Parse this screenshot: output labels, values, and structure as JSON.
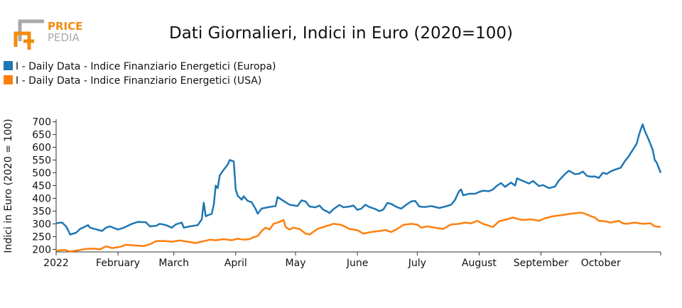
{
  "logo": {
    "line1": "PRICE",
    "line2": "PEDIA",
    "accent": "#f28c0f",
    "muted": "#a9a9a9"
  },
  "chart_data": {
    "type": "line",
    "title": "Dati Giornalieri, Indici in Euro (2020=100)",
    "xlabel": "",
    "ylabel": "Indici in Euro (2020 = 100)",
    "ylim": [
      190,
      710
    ],
    "yticks": [
      200,
      250,
      300,
      350,
      400,
      450,
      500,
      550,
      600,
      650,
      700
    ],
    "xlim": [
      "2022-01-01",
      "2022-10-31"
    ],
    "xticks": [
      {
        "date": "2022-01-01",
        "label": "2022"
      },
      {
        "date": "2022-02-01",
        "label": "February"
      },
      {
        "date": "2022-03-01",
        "label": "March"
      },
      {
        "date": "2022-04-01",
        "label": "April"
      },
      {
        "date": "2022-05-01",
        "label": "May"
      },
      {
        "date": "2022-06-01",
        "label": "June"
      },
      {
        "date": "2022-07-01",
        "label": "July"
      },
      {
        "date": "2022-08-01",
        "label": "August"
      },
      {
        "date": "2022-09-01",
        "label": "September"
      },
      {
        "date": "2022-10-01",
        "label": "October"
      }
    ],
    "grid": false,
    "legend_position": "top-left",
    "series": [
      {
        "name": "I - Daily Data - Indice Finanziario Energetici (Europa)",
        "color": "#1f77b4",
        "points": [
          [
            "2022-01-01",
            303
          ],
          [
            "2022-01-04",
            305
          ],
          [
            "2022-01-06",
            290
          ],
          [
            "2022-01-07",
            275
          ],
          [
            "2022-01-08",
            258
          ],
          [
            "2022-01-11",
            265
          ],
          [
            "2022-01-13",
            280
          ],
          [
            "2022-01-17",
            295
          ],
          [
            "2022-01-18",
            285
          ],
          [
            "2022-01-24",
            272
          ],
          [
            "2022-01-26",
            285
          ],
          [
            "2022-01-28",
            290
          ],
          [
            "2022-02-01",
            278
          ],
          [
            "2022-02-04",
            285
          ],
          [
            "2022-02-08",
            300
          ],
          [
            "2022-02-11",
            308
          ],
          [
            "2022-02-15",
            306
          ],
          [
            "2022-02-17",
            290
          ],
          [
            "2022-02-20",
            292
          ],
          [
            "2022-02-22",
            300
          ],
          [
            "2022-02-25",
            295
          ],
          [
            "2022-02-28",
            285
          ],
          [
            "2022-03-02",
            298
          ],
          [
            "2022-03-05",
            305
          ],
          [
            "2022-03-06",
            285
          ],
          [
            "2022-03-09",
            290
          ],
          [
            "2022-03-13",
            295
          ],
          [
            "2022-03-15",
            318
          ],
          [
            "2022-03-16",
            383
          ],
          [
            "2022-03-17",
            330
          ],
          [
            "2022-03-20",
            340
          ],
          [
            "2022-03-21",
            375
          ],
          [
            "2022-03-22",
            450
          ],
          [
            "2022-03-23",
            440
          ],
          [
            "2022-03-24",
            490
          ],
          [
            "2022-03-26",
            512
          ],
          [
            "2022-03-28",
            532
          ],
          [
            "2022-03-29",
            550
          ],
          [
            "2022-03-31",
            545
          ],
          [
            "2022-04-01",
            435
          ],
          [
            "2022-04-02",
            410
          ],
          [
            "2022-04-04",
            395
          ],
          [
            "2022-04-05",
            408
          ],
          [
            "2022-04-07",
            390
          ],
          [
            "2022-04-09",
            385
          ],
          [
            "2022-04-11",
            358
          ],
          [
            "2022-04-12",
            340
          ],
          [
            "2022-04-14",
            360
          ],
          [
            "2022-04-17",
            365
          ],
          [
            "2022-04-21",
            370
          ],
          [
            "2022-04-22",
            405
          ],
          [
            "2022-04-24",
            395
          ],
          [
            "2022-04-26",
            385
          ],
          [
            "2022-04-28",
            375
          ],
          [
            "2022-05-02",
            370
          ],
          [
            "2022-05-04",
            392
          ],
          [
            "2022-05-06",
            388
          ],
          [
            "2022-05-08",
            368
          ],
          [
            "2022-05-11",
            365
          ],
          [
            "2022-05-13",
            372
          ],
          [
            "2022-05-15",
            355
          ],
          [
            "2022-05-17",
            348
          ],
          [
            "2022-05-18",
            342
          ],
          [
            "2022-05-20",
            358
          ],
          [
            "2022-05-23",
            374
          ],
          [
            "2022-05-25",
            365
          ],
          [
            "2022-05-28",
            368
          ],
          [
            "2022-05-30",
            372
          ],
          [
            "2022-06-01",
            355
          ],
          [
            "2022-06-03",
            360
          ],
          [
            "2022-06-05",
            375
          ],
          [
            "2022-06-07",
            366
          ],
          [
            "2022-06-10",
            358
          ],
          [
            "2022-06-12",
            350
          ],
          [
            "2022-06-14",
            356
          ],
          [
            "2022-06-16",
            382
          ],
          [
            "2022-06-18",
            378
          ],
          [
            "2022-06-21",
            365
          ],
          [
            "2022-06-23",
            360
          ],
          [
            "2022-06-26",
            378
          ],
          [
            "2022-06-28",
            388
          ],
          [
            "2022-06-30",
            390
          ],
          [
            "2022-07-02",
            368
          ],
          [
            "2022-07-05",
            366
          ],
          [
            "2022-07-08",
            370
          ],
          [
            "2022-07-12",
            362
          ],
          [
            "2022-07-15",
            368
          ],
          [
            "2022-07-18",
            375
          ],
          [
            "2022-07-20",
            395
          ],
          [
            "2022-07-21",
            412
          ],
          [
            "2022-07-22",
            428
          ],
          [
            "2022-07-23",
            435
          ],
          [
            "2022-07-24",
            412
          ],
          [
            "2022-07-27",
            418
          ],
          [
            "2022-07-30",
            418
          ],
          [
            "2022-08-01",
            425
          ],
          [
            "2022-08-03",
            430
          ],
          [
            "2022-08-06",
            428
          ],
          [
            "2022-08-08",
            435
          ],
          [
            "2022-08-10",
            450
          ],
          [
            "2022-08-12",
            460
          ],
          [
            "2022-08-14",
            445
          ],
          [
            "2022-08-17",
            462
          ],
          [
            "2022-08-19",
            450
          ],
          [
            "2022-08-20",
            478
          ],
          [
            "2022-08-23",
            468
          ],
          [
            "2022-08-26",
            458
          ],
          [
            "2022-08-28",
            468
          ],
          [
            "2022-08-31",
            448
          ],
          [
            "2022-09-02",
            452
          ],
          [
            "2022-09-05",
            440
          ],
          [
            "2022-09-08",
            446
          ],
          [
            "2022-09-10",
            470
          ],
          [
            "2022-09-13",
            495
          ],
          [
            "2022-09-15",
            508
          ],
          [
            "2022-09-18",
            495
          ],
          [
            "2022-09-20",
            496
          ],
          [
            "2022-09-22",
            505
          ],
          [
            "2022-09-24",
            488
          ],
          [
            "2022-09-26",
            485
          ],
          [
            "2022-09-28",
            486
          ],
          [
            "2022-09-30",
            480
          ],
          [
            "2022-10-02",
            500
          ],
          [
            "2022-10-04",
            496
          ],
          [
            "2022-10-06",
            506
          ],
          [
            "2022-10-08",
            512
          ],
          [
            "2022-10-11",
            520
          ],
          [
            "2022-10-13",
            545
          ],
          [
            "2022-10-15",
            565
          ],
          [
            "2022-10-17",
            590
          ],
          [
            "2022-10-19",
            615
          ],
          [
            "2022-10-20",
            645
          ],
          [
            "2022-10-21",
            670
          ],
          [
            "2022-10-22",
            690
          ],
          [
            "2022-10-23",
            665
          ],
          [
            "2022-10-25",
            630
          ],
          [
            "2022-10-27",
            590
          ],
          [
            "2022-10-28",
            550
          ],
          [
            "2022-10-29",
            540
          ],
          [
            "2022-10-31",
            500
          ]
        ]
      },
      {
        "name": "I - Daily Data - Indice Finanziario Energetici (USA)",
        "color": "#ff7f0e",
        "points": [
          [
            "2022-01-01",
            195
          ],
          [
            "2022-01-05",
            198
          ],
          [
            "2022-01-08",
            192
          ],
          [
            "2022-01-12",
            196
          ],
          [
            "2022-01-16",
            202
          ],
          [
            "2022-01-20",
            203
          ],
          [
            "2022-01-23",
            200
          ],
          [
            "2022-01-26",
            212
          ],
          [
            "2022-01-29",
            205
          ],
          [
            "2022-02-02",
            210
          ],
          [
            "2022-02-05",
            218
          ],
          [
            "2022-02-10",
            215
          ],
          [
            "2022-02-14",
            213
          ],
          [
            "2022-02-17",
            220
          ],
          [
            "2022-02-20",
            232
          ],
          [
            "2022-02-24",
            233
          ],
          [
            "2022-02-28",
            230
          ],
          [
            "2022-03-04",
            235
          ],
          [
            "2022-03-08",
            230
          ],
          [
            "2022-03-12",
            225
          ],
          [
            "2022-03-16",
            232
          ],
          [
            "2022-03-19",
            238
          ],
          [
            "2022-03-22",
            236
          ],
          [
            "2022-03-26",
            240
          ],
          [
            "2022-03-30",
            236
          ],
          [
            "2022-04-02",
            242
          ],
          [
            "2022-04-05",
            238
          ],
          [
            "2022-04-08",
            240
          ],
          [
            "2022-04-10",
            248
          ],
          [
            "2022-04-12",
            252
          ],
          [
            "2022-04-14",
            272
          ],
          [
            "2022-04-16",
            285
          ],
          [
            "2022-04-18",
            278
          ],
          [
            "2022-04-20",
            300
          ],
          [
            "2022-04-23",
            308
          ],
          [
            "2022-04-25",
            315
          ],
          [
            "2022-04-26",
            288
          ],
          [
            "2022-04-28",
            278
          ],
          [
            "2022-04-30",
            285
          ],
          [
            "2022-05-03",
            280
          ],
          [
            "2022-05-06",
            262
          ],
          [
            "2022-05-08",
            258
          ],
          [
            "2022-05-12",
            280
          ],
          [
            "2022-05-16",
            290
          ],
          [
            "2022-05-20",
            300
          ],
          [
            "2022-05-24",
            296
          ],
          [
            "2022-05-28",
            280
          ],
          [
            "2022-06-01",
            275
          ],
          [
            "2022-06-04",
            262
          ],
          [
            "2022-06-08",
            268
          ],
          [
            "2022-06-12",
            272
          ],
          [
            "2022-06-15",
            276
          ],
          [
            "2022-06-18",
            268
          ],
          [
            "2022-06-21",
            280
          ],
          [
            "2022-06-24",
            296
          ],
          [
            "2022-06-28",
            300
          ],
          [
            "2022-07-01",
            297
          ],
          [
            "2022-07-03",
            285
          ],
          [
            "2022-07-06",
            290
          ],
          [
            "2022-07-10",
            285
          ],
          [
            "2022-07-14",
            280
          ],
          [
            "2022-07-18",
            298
          ],
          [
            "2022-07-22",
            300
          ],
          [
            "2022-07-25",
            305
          ],
          [
            "2022-07-28",
            302
          ],
          [
            "2022-07-31",
            312
          ],
          [
            "2022-08-03",
            300
          ],
          [
            "2022-08-08",
            288
          ],
          [
            "2022-08-11",
            310
          ],
          [
            "2022-08-15",
            318
          ],
          [
            "2022-08-18",
            325
          ],
          [
            "2022-08-20",
            320
          ],
          [
            "2022-08-23",
            315
          ],
          [
            "2022-08-27",
            318
          ],
          [
            "2022-08-31",
            312
          ],
          [
            "2022-09-03",
            322
          ],
          [
            "2022-09-07",
            330
          ],
          [
            "2022-09-12",
            335
          ],
          [
            "2022-09-16",
            340
          ],
          [
            "2022-09-21",
            344
          ],
          [
            "2022-09-23",
            340
          ],
          [
            "2022-09-26",
            330
          ],
          [
            "2022-09-28",
            325
          ],
          [
            "2022-09-30",
            312
          ],
          [
            "2022-10-03",
            310
          ],
          [
            "2022-10-06",
            305
          ],
          [
            "2022-10-10",
            312
          ],
          [
            "2022-10-12",
            302
          ],
          [
            "2022-10-14",
            300
          ],
          [
            "2022-10-18",
            305
          ],
          [
            "2022-10-22",
            300
          ],
          [
            "2022-10-26",
            302
          ],
          [
            "2022-10-28",
            290
          ],
          [
            "2022-10-31",
            288
          ]
        ]
      }
    ]
  }
}
